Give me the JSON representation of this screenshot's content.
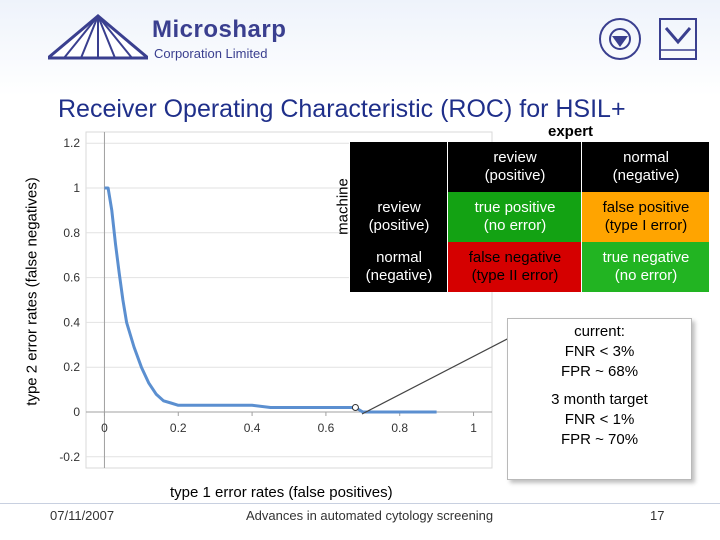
{
  "header": {
    "company_name": "Microsharp",
    "company_sub": "Corporation Limited",
    "title": "Receiver Operating Characteristic (ROC) for HSIL+"
  },
  "chart_data": {
    "type": "line",
    "title": "",
    "xlabel": "type 1 error rates (false positives)",
    "ylabel": "type 2 error rates (false negatives)",
    "xlim": [
      -0.05,
      1.05
    ],
    "ylim": [
      -0.25,
      1.25
    ],
    "x_ticks": [
      0,
      0.2,
      0.4,
      0.6,
      0.8,
      1
    ],
    "y_ticks": [
      -0.2,
      0,
      0.2,
      0.4,
      0.6,
      0.8,
      1,
      1.2
    ],
    "x_tick_labels": [
      "0",
      "0.2",
      "0.4",
      "0.6",
      "0.8",
      "1"
    ],
    "y_tick_labels": [
      "-0.2",
      "0",
      "0.2",
      "0.4",
      "0.6",
      "0.8",
      "1",
      "1.2"
    ],
    "grid": "horizontal",
    "line_color": "#5b8fd0",
    "series": [
      {
        "x": [
          0,
          0.01,
          0.02,
          0.03,
          0.04,
          0.05,
          0.06,
          0.08,
          0.1,
          0.12,
          0.14,
          0.16,
          0.18,
          0.2,
          0.25,
          0.3,
          0.35,
          0.4,
          0.45,
          0.5,
          0.55,
          0.6,
          0.65,
          0.68,
          0.7,
          0.75,
          0.8,
          0.85,
          0.9
        ],
        "y": [
          1.0,
          1.0,
          0.9,
          0.75,
          0.62,
          0.5,
          0.4,
          0.29,
          0.2,
          0.13,
          0.08,
          0.05,
          0.04,
          0.03,
          0.03,
          0.03,
          0.03,
          0.03,
          0.02,
          0.02,
          0.02,
          0.02,
          0.02,
          0.02,
          0.0,
          0.0,
          0.0,
          0.0,
          0.0
        ]
      }
    ],
    "current_point": {
      "x": 0.68,
      "y": 0.02
    }
  },
  "matrix": {
    "expert_label": "expert",
    "machine_label": "machine",
    "col_headers": [
      "review\n(positive)",
      "normal\n(negative)"
    ],
    "row_headers": [
      "review\n(positive)",
      "normal\n(negative)"
    ],
    "cells": [
      [
        "true positive\n(no error)",
        "false positive\n(type I error)"
      ],
      [
        "false negative\n(type II error)",
        "true negative\n(no error)"
      ]
    ],
    "colors": {
      "header": "#000000",
      "green": "#13a213",
      "orange": "#ffa400",
      "red": "#d50000",
      "green_bright": "#22b422"
    }
  },
  "callout": {
    "current_label": "current:",
    "current_fnr": "FNR < 3%",
    "current_fpr": "FPR ~ 68%",
    "target_label": "3 month target",
    "target_fnr": "FNR < 1%",
    "target_fpr": "FPR ~ 70%"
  },
  "footer": {
    "date": "07/11/2007",
    "center": "Advances in automated cytology screening",
    "page": "17"
  }
}
